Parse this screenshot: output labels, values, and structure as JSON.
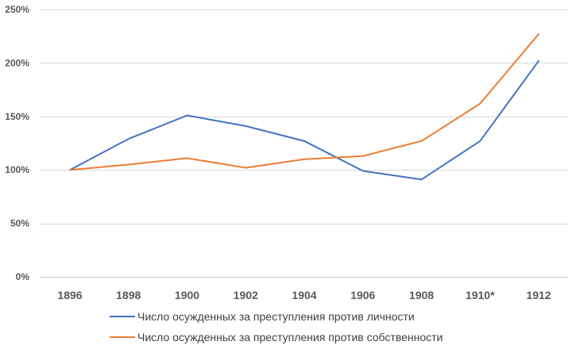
{
  "chart_data": {
    "type": "line",
    "categories": [
      "1896",
      "1898",
      "1900",
      "1902",
      "1904",
      "1906",
      "1908",
      "1910*",
      "1912"
    ],
    "ylim": [
      0,
      250
    ],
    "yticks": [
      0,
      50,
      100,
      150,
      200,
      250
    ],
    "ytick_labels": [
      "0%",
      "50%",
      "100%",
      "150%",
      "200%",
      "250%"
    ],
    "grid": true,
    "legend_position": "bottom",
    "series": [
      {
        "name": "Число осужденных за преступления против личности",
        "color": "#4472C4",
        "values": [
          100,
          129,
          151,
          141,
          127,
          99,
          91,
          127,
          202
        ]
      },
      {
        "name": "Число осужденных за преступления против собственности",
        "color": "#ED7D31",
        "values": [
          100,
          105,
          111,
          102,
          110,
          113,
          127,
          162,
          227
        ]
      }
    ]
  }
}
